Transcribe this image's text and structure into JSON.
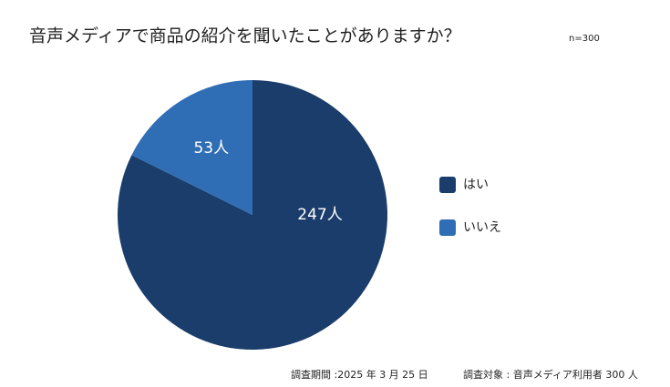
{
  "chart_data": {
    "type": "pie",
    "title": "音声メディアで商品の紹介を聞いたことがありますか？",
    "subtitle": "n=300",
    "categories": [
      "はい",
      "いいえ"
    ],
    "values": [
      247,
      53
    ],
    "value_labels": [
      "247人",
      "53人"
    ],
    "colors": [
      "#1b3d6b",
      "#2f6db4"
    ],
    "footnote": [
      "調査期間 :2025 年 3 月 25 日",
      "調査対象 : 音声メディア利用者 300 人"
    ]
  }
}
